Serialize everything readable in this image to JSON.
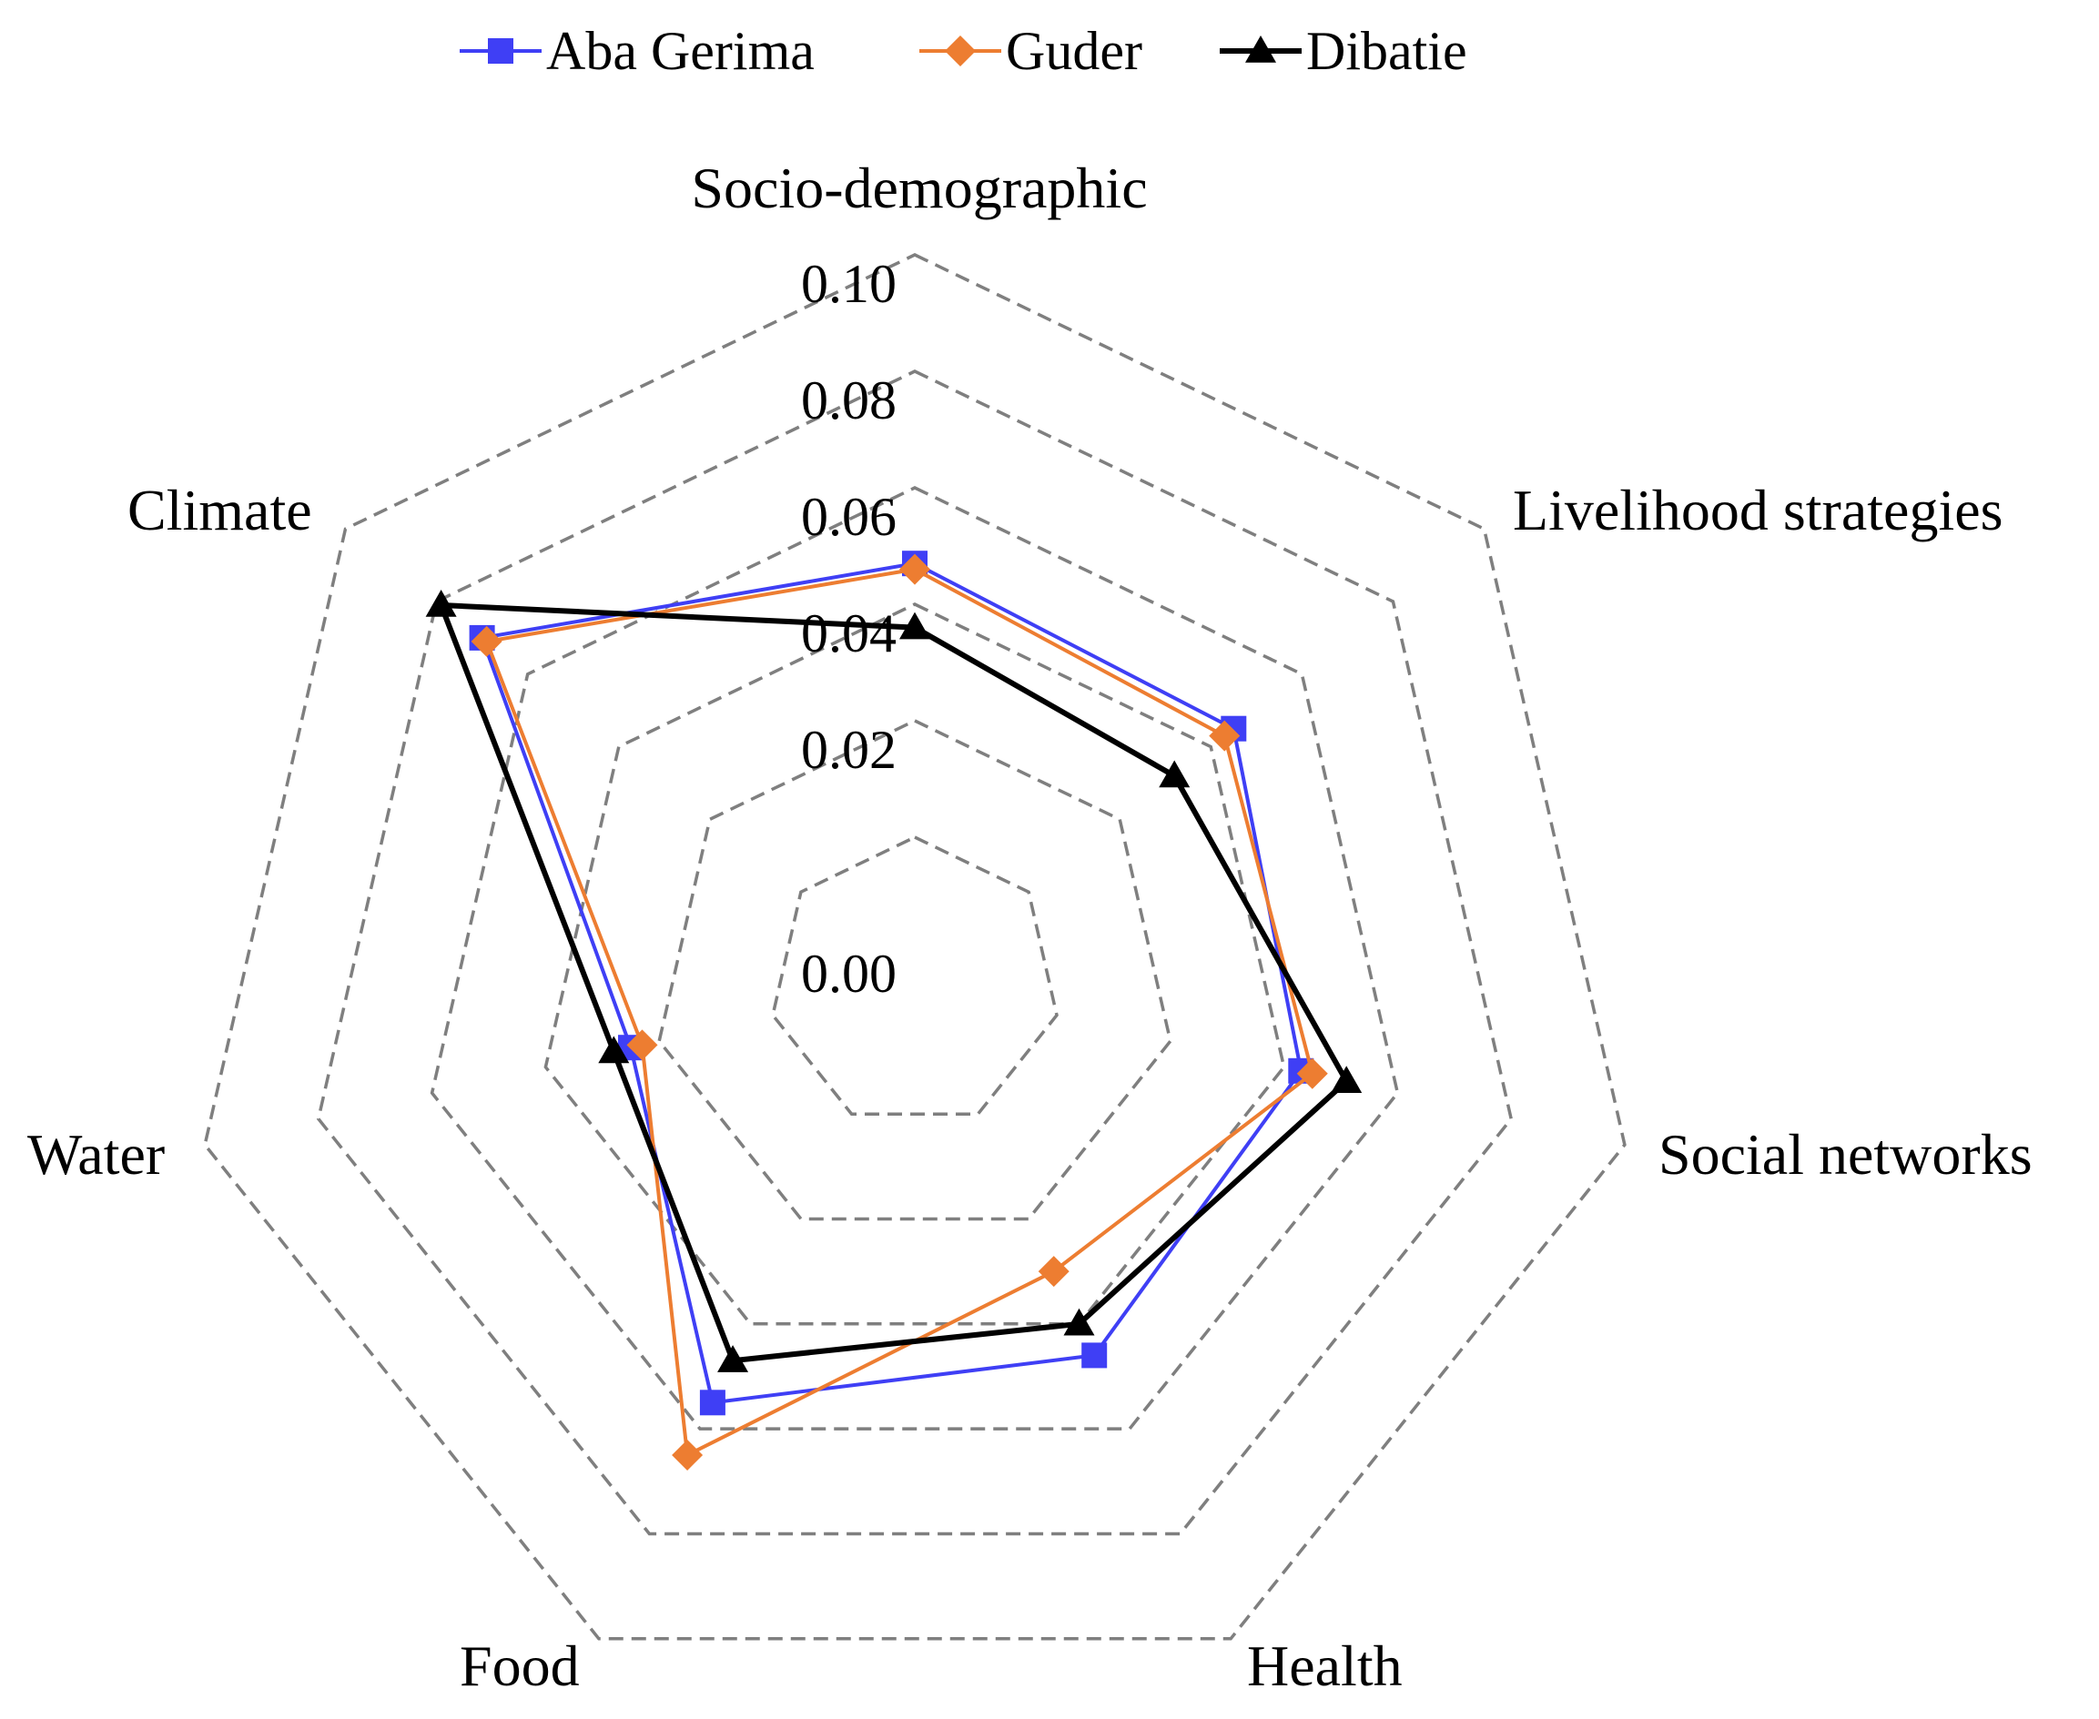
{
  "chart_data": {
    "type": "radar",
    "axes": [
      "Socio-demographic",
      "Livelihood strategies",
      "Social networks",
      "Health",
      "Food",
      "Water",
      "Climate"
    ],
    "rlim": [
      0,
      0.1
    ],
    "ticks": [
      "0.00",
      "0.02",
      "0.04",
      "0.06",
      "0.08",
      "0.10"
    ],
    "tick_values": [
      0,
      0.02,
      0.04,
      0.06,
      0.08,
      0.1
    ],
    "legend_position": "top",
    "series": [
      {
        "name": "Aba Gerima",
        "color": "#3f3ff5",
        "marker": "square",
        "values": [
          0.047,
          0.045,
          0.043,
          0.046,
          0.055,
          0.025,
          0.07
        ]
      },
      {
        "name": "Guder",
        "color": "#ed7d31",
        "marker": "diamond",
        "values": [
          0.046,
          0.043,
          0.045,
          0.03,
          0.065,
          0.023,
          0.069
        ]
      },
      {
        "name": "Dibatie",
        "color": "#000000",
        "marker": "triangle",
        "values": [
          0.036,
          0.032,
          0.051,
          0.04,
          0.047,
          0.028,
          0.079
        ]
      }
    ]
  }
}
